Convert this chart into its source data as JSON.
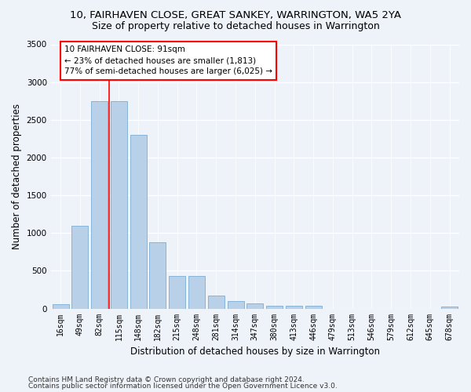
{
  "title1": "10, FAIRHAVEN CLOSE, GREAT SANKEY, WARRINGTON, WA5 2YA",
  "title2": "Size of property relative to detached houses in Warrington",
  "xlabel": "Distribution of detached houses by size in Warrington",
  "ylabel": "Number of detached properties",
  "categories": [
    "16sqm",
    "49sqm",
    "82sqm",
    "115sqm",
    "148sqm",
    "182sqm",
    "215sqm",
    "248sqm",
    "281sqm",
    "314sqm",
    "347sqm",
    "380sqm",
    "413sqm",
    "446sqm",
    "479sqm",
    "513sqm",
    "546sqm",
    "579sqm",
    "612sqm",
    "645sqm",
    "678sqm"
  ],
  "values": [
    55,
    1100,
    2750,
    2750,
    2300,
    880,
    430,
    430,
    170,
    100,
    65,
    40,
    35,
    35,
    0,
    0,
    0,
    0,
    0,
    0,
    30
  ],
  "bar_color": "#b8d0e8",
  "bar_edge_color": "#7aadd4",
  "vline_x": 2.5,
  "vline_color": "red",
  "annotation_text": "10 FAIRHAVEN CLOSE: 91sqm\n← 23% of detached houses are smaller (1,813)\n77% of semi-detached houses are larger (6,025) →",
  "annotation_box_color": "white",
  "annotation_box_edge": "red",
  "ylim": [
    0,
    3500
  ],
  "yticks": [
    0,
    500,
    1000,
    1500,
    2000,
    2500,
    3000,
    3500
  ],
  "footer1": "Contains HM Land Registry data © Crown copyright and database right 2024.",
  "footer2": "Contains public sector information licensed under the Open Government Licence v3.0.",
  "bg_color": "#eef2f9",
  "grid_color": "#ffffff",
  "title1_fontsize": 9.5,
  "title2_fontsize": 9,
  "xlabel_fontsize": 8.5,
  "ylabel_fontsize": 8.5,
  "footer_fontsize": 6.5,
  "annotation_fontsize": 7.5,
  "tick_fontsize": 7
}
